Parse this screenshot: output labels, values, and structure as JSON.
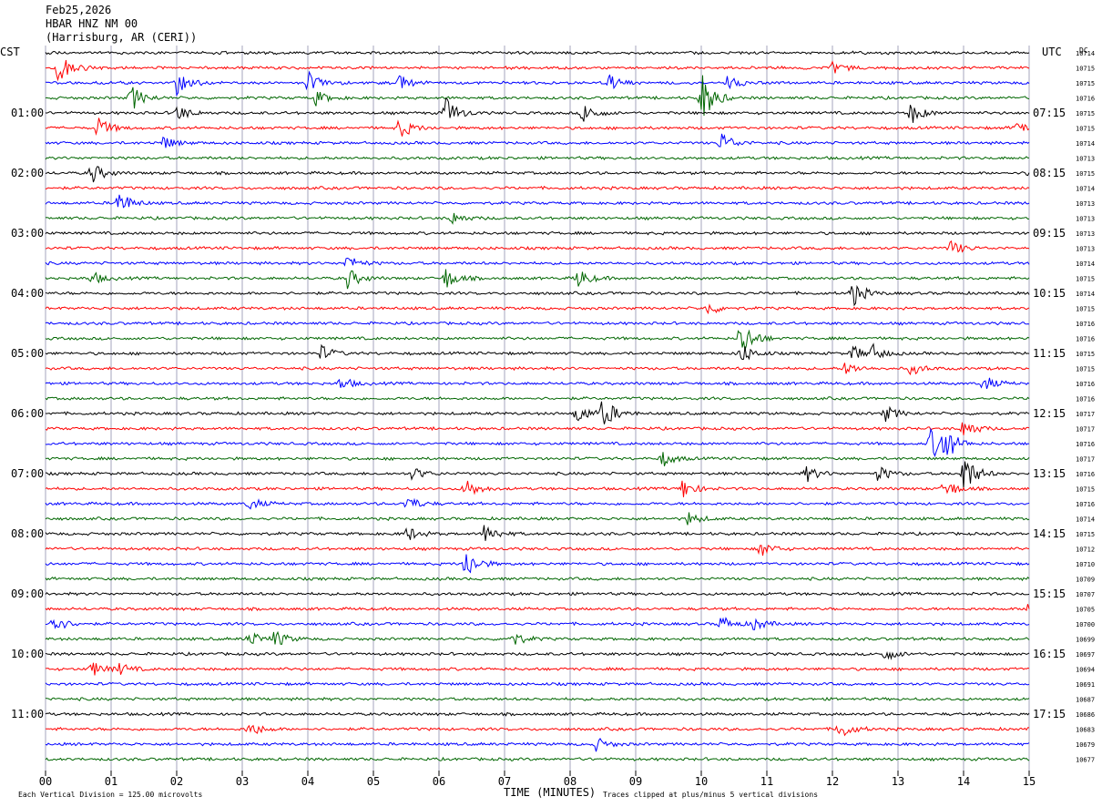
{
  "header": {
    "date": "Feb25,2026",
    "channel": "HBAR HNZ NM 00",
    "location": "(Harrisburg, AR (CERI))",
    "left_zone": "CST",
    "right_zone": "UTC",
    "dc_label": "DC"
  },
  "footer": {
    "scale_note": "Each Vertical Division = 125.00 microvolts",
    "xlabel": "TIME (MINUTES)",
    "clip_note": "Traces clipped at plus/minus 5 vertical divisions"
  },
  "colors": {
    "trace_cycle": [
      "#000000",
      "#ff0000",
      "#0000ff",
      "#006600"
    ],
    "grid": "#8080a0"
  },
  "chart_data": {
    "type": "line",
    "title": "HBAR HNZ NM 00",
    "xlabel": "TIME (MINUTES)",
    "ylabel": "",
    "xlim": [
      0,
      15
    ],
    "x_ticks": [
      "00",
      "01",
      "02",
      "03",
      "04",
      "05",
      "06",
      "07",
      "08",
      "09",
      "10",
      "11",
      "12",
      "13",
      "14",
      "15"
    ],
    "rows_per_hour": 4,
    "left_time_labels": [
      "01:00",
      "02:00",
      "03:00",
      "04:00",
      "05:00",
      "06:00",
      "07:00",
      "08:00",
      "09:00",
      "10:00",
      "11:00"
    ],
    "right_time_labels": [
      "07:15",
      "08:15",
      "09:15",
      "10:15",
      "11:15",
      "12:15",
      "13:15",
      "14:15",
      "15:15",
      "16:15",
      "17:15"
    ],
    "dc_offsets": [
      "10714",
      "10715",
      "10715",
      "10716",
      "10715",
      "10715",
      "10714",
      "10713",
      "10715",
      "10714",
      "10713",
      "10713",
      "10713",
      "10713",
      "10714",
      "10715",
      "10714",
      "10715",
      "10716",
      "10716",
      "10715",
      "10715",
      "10716",
      "10716",
      "10717",
      "10717",
      "10716",
      "10717",
      "10716",
      "10715",
      "10716",
      "10714",
      "10715",
      "10712",
      "10710",
      "10709",
      "10707",
      "10705",
      "10700",
      "10699",
      "10697",
      "10694",
      "10691",
      "10687",
      "10686",
      "10683",
      "10679",
      "10677"
    ],
    "events": [
      {
        "row": 1,
        "minute": 0.2,
        "amp": 3
      },
      {
        "row": 1,
        "minute": 12.0,
        "amp": 1.5
      },
      {
        "row": 2,
        "minute": 2.0,
        "amp": 2
      },
      {
        "row": 2,
        "minute": 4.0,
        "amp": 2
      },
      {
        "row": 2,
        "minute": 5.4,
        "amp": 1.5
      },
      {
        "row": 2,
        "minute": 8.6,
        "amp": 1.5
      },
      {
        "row": 2,
        "minute": 10.4,
        "amp": 1.2
      },
      {
        "row": 3,
        "minute": 1.3,
        "amp": 2.5
      },
      {
        "row": 3,
        "minute": 4.1,
        "amp": 1.5
      },
      {
        "row": 3,
        "minute": 10.0,
        "amp": 5
      },
      {
        "row": 4,
        "minute": 2.0,
        "amp": 1.5
      },
      {
        "row": 4,
        "minute": 6.1,
        "amp": 3
      },
      {
        "row": 4,
        "minute": 8.2,
        "amp": 2
      },
      {
        "row": 4,
        "minute": 13.2,
        "amp": 2
      },
      {
        "row": 5,
        "minute": 0.8,
        "amp": 2
      },
      {
        "row": 5,
        "minute": 5.4,
        "amp": 2
      },
      {
        "row": 5,
        "minute": 14.8,
        "amp": 1.2
      },
      {
        "row": 6,
        "minute": 1.8,
        "amp": 1.2
      },
      {
        "row": 6,
        "minute": 10.3,
        "amp": 2
      },
      {
        "row": 8,
        "minute": 0.7,
        "amp": 2
      },
      {
        "row": 8,
        "minute": 15.0,
        "amp": 1.5
      },
      {
        "row": 10,
        "minute": 1.1,
        "amp": 2.5
      },
      {
        "row": 11,
        "minute": 6.2,
        "amp": 1.2
      },
      {
        "row": 13,
        "minute": 13.8,
        "amp": 1.5
      },
      {
        "row": 14,
        "minute": 4.6,
        "amp": 1.5
      },
      {
        "row": 15,
        "minute": 0.7,
        "amp": 1.2
      },
      {
        "row": 15,
        "minute": 4.6,
        "amp": 2
      },
      {
        "row": 15,
        "minute": 6.1,
        "amp": 2
      },
      {
        "row": 15,
        "minute": 8.1,
        "amp": 2
      },
      {
        "row": 16,
        "minute": 12.3,
        "amp": 2.5
      },
      {
        "row": 17,
        "minute": 10.1,
        "amp": 1.2
      },
      {
        "row": 19,
        "minute": 10.6,
        "amp": 4
      },
      {
        "row": 20,
        "minute": 4.2,
        "amp": 1.5
      },
      {
        "row": 20,
        "minute": 10.6,
        "amp": 2
      },
      {
        "row": 20,
        "minute": 12.3,
        "amp": 1.5
      },
      {
        "row": 20,
        "minute": 12.6,
        "amp": 1.5
      },
      {
        "row": 21,
        "minute": 12.2,
        "amp": 1.2
      },
      {
        "row": 21,
        "minute": 13.2,
        "amp": 1.2
      },
      {
        "row": 22,
        "minute": 4.5,
        "amp": 1.2
      },
      {
        "row": 22,
        "minute": 14.3,
        "amp": 1.5
      },
      {
        "row": 24,
        "minute": 8.1,
        "amp": 2
      },
      {
        "row": 24,
        "minute": 8.5,
        "amp": 3
      },
      {
        "row": 24,
        "minute": 12.8,
        "amp": 1.5
      },
      {
        "row": 25,
        "minute": 14.0,
        "amp": 2
      },
      {
        "row": 26,
        "minute": 13.5,
        "amp": 3
      },
      {
        "row": 26,
        "minute": 13.7,
        "amp": 3
      },
      {
        "row": 27,
        "minute": 9.4,
        "amp": 1.5
      },
      {
        "row": 28,
        "minute": 5.6,
        "amp": 1.2
      },
      {
        "row": 28,
        "minute": 11.6,
        "amp": 1.5
      },
      {
        "row": 28,
        "minute": 12.7,
        "amp": 1.5
      },
      {
        "row": 28,
        "minute": 14.0,
        "amp": 4
      },
      {
        "row": 29,
        "minute": 6.4,
        "amp": 2
      },
      {
        "row": 29,
        "minute": 9.7,
        "amp": 2
      },
      {
        "row": 29,
        "minute": 13.7,
        "amp": 2
      },
      {
        "row": 30,
        "minute": 3.1,
        "amp": 1.2
      },
      {
        "row": 30,
        "minute": 5.5,
        "amp": 1.5
      },
      {
        "row": 31,
        "minute": 9.8,
        "amp": 1.2
      },
      {
        "row": 32,
        "minute": 5.5,
        "amp": 1.5
      },
      {
        "row": 32,
        "minute": 6.7,
        "amp": 2
      },
      {
        "row": 33,
        "minute": 10.9,
        "amp": 1.5
      },
      {
        "row": 34,
        "minute": 6.4,
        "amp": 3
      },
      {
        "row": 37,
        "minute": 15.0,
        "amp": 2
      },
      {
        "row": 38,
        "minute": 0.1,
        "amp": 2
      },
      {
        "row": 38,
        "minute": 10.3,
        "amp": 1.5
      },
      {
        "row": 38,
        "minute": 10.8,
        "amp": 1.2
      },
      {
        "row": 39,
        "minute": 3.1,
        "amp": 1.5
      },
      {
        "row": 39,
        "minute": 3.5,
        "amp": 1.5
      },
      {
        "row": 39,
        "minute": 7.1,
        "amp": 1.5
      },
      {
        "row": 40,
        "minute": 12.8,
        "amp": 1.2
      },
      {
        "row": 41,
        "minute": 0.7,
        "amp": 1.5
      },
      {
        "row": 41,
        "minute": 1.1,
        "amp": 1.2
      },
      {
        "row": 45,
        "minute": 3.1,
        "amp": 1.5
      },
      {
        "row": 45,
        "minute": 12.1,
        "amp": 2
      },
      {
        "row": 46,
        "minute": 8.4,
        "amp": 1.2
      }
    ]
  }
}
